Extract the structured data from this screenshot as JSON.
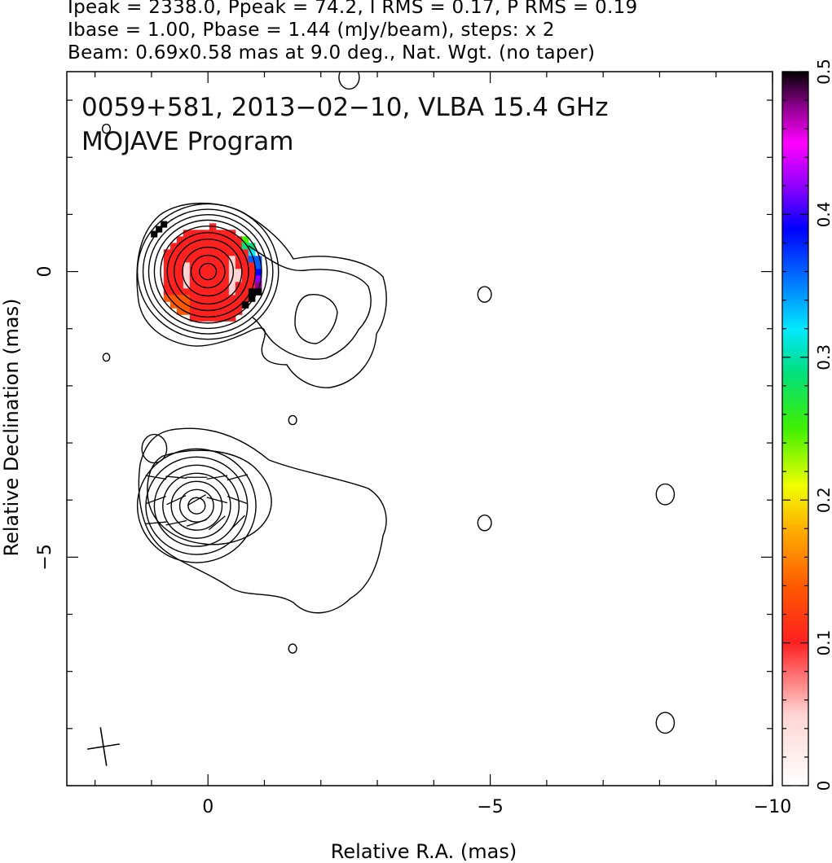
{
  "header": {
    "line1": "Ipeak = 2338.0, Ppeak = 74.2, I RMS = 0.17, P RMS = 0.19",
    "line2": "Ibase = 1.00, Pbase = 1.44 (mJy/beam), steps: x 2",
    "line3": "Beam: 0.69x0.58 mas at 9.0 deg., Nat. Wgt. (no taper)"
  },
  "chart_data": {
    "type": "heatmap",
    "title_line1": "0059+581, 2013−02−10, VLBA 15.4 GHz",
    "title_line2": "MOJAVE Program",
    "xlabel": "Relative R.A. (mas)",
    "ylabel": "Relative Declination (mas)",
    "xlim": [
      2.5,
      -10
    ],
    "ylim": [
      -9,
      3.5
    ],
    "x_ticks": [
      0,
      -5,
      -10
    ],
    "x_tick_labels": [
      "0",
      "−5",
      "−10"
    ],
    "y_ticks": [
      0,
      -5
    ],
    "y_tick_labels": [
      "0",
      "−5"
    ],
    "colorbar": {
      "range": [
        0,
        0.5
      ],
      "ticks": [
        0,
        0.1,
        0.2,
        0.3,
        0.4,
        0.5
      ],
      "tick_labels": [
        "0",
        "0.1",
        "0.2",
        "0.3",
        "0.4",
        "0.5"
      ],
      "colors": [
        [
          0.0,
          "#ffffff"
        ],
        [
          0.05,
          "#ffd4d4"
        ],
        [
          0.1,
          "#ff2020"
        ],
        [
          0.14,
          "#ff5a00"
        ],
        [
          0.18,
          "#ffb000"
        ],
        [
          0.21,
          "#f0ff00"
        ],
        [
          0.25,
          "#40f000"
        ],
        [
          0.29,
          "#00e080"
        ],
        [
          0.32,
          "#00e8ff"
        ],
        [
          0.36,
          "#0060ff"
        ],
        [
          0.39,
          "#0000ff"
        ],
        [
          0.42,
          "#9000ff"
        ],
        [
          0.45,
          "#ff00ff"
        ],
        [
          0.475,
          "#900090"
        ],
        [
          0.5,
          "#000000"
        ]
      ]
    },
    "upper_panel": {
      "peak_position": [
        0,
        0
      ],
      "core_contour_radii_mas": [
        0.15,
        0.3,
        0.45,
        0.6,
        0.72,
        0.84,
        0.95,
        1.05,
        1.15,
        1.25
      ],
      "fractional_polarization_region": {
        "center": [
          0,
          0
        ],
        "radius_mas": 0.9,
        "typical_value": 0.08
      }
    },
    "lower_panel": {
      "peak_position": [
        0.2,
        -4.1
      ],
      "core_contour_radii_mas": [
        0.15,
        0.3,
        0.45,
        0.6,
        0.75,
        0.9,
        1.05
      ],
      "evpa_vectors_deg": [
        -10,
        -5,
        0,
        10,
        15,
        20,
        25,
        30,
        -15,
        -20,
        5,
        12,
        18,
        40,
        45
      ]
    },
    "isolated_components": [
      {
        "x": -4.9,
        "y": -0.4,
        "r": 0.12
      },
      {
        "x": -1.5,
        "y": -2.6,
        "r": 0.07
      },
      {
        "x": 1.8,
        "y": -1.5,
        "r": 0.06
      },
      {
        "x": -8.1,
        "y": -3.9,
        "r": 0.16
      },
      {
        "x": -4.9,
        "y": -4.4,
        "r": 0.12
      },
      {
        "x": -1.5,
        "y": -6.6,
        "r": 0.07
      },
      {
        "x": -8.1,
        "y": -7.9,
        "r": 0.16
      },
      {
        "x": 0.95,
        "y": -3.1,
        "r": 0.22
      },
      {
        "x": 1.8,
        "y": 2.5,
        "r": 0.07
      },
      {
        "x": -2.5,
        "y": 3.4,
        "r": 0.18
      }
    ],
    "beam": {
      "major_mas": 0.69,
      "minor_mas": 0.58,
      "pa_deg": 9.0
    }
  }
}
